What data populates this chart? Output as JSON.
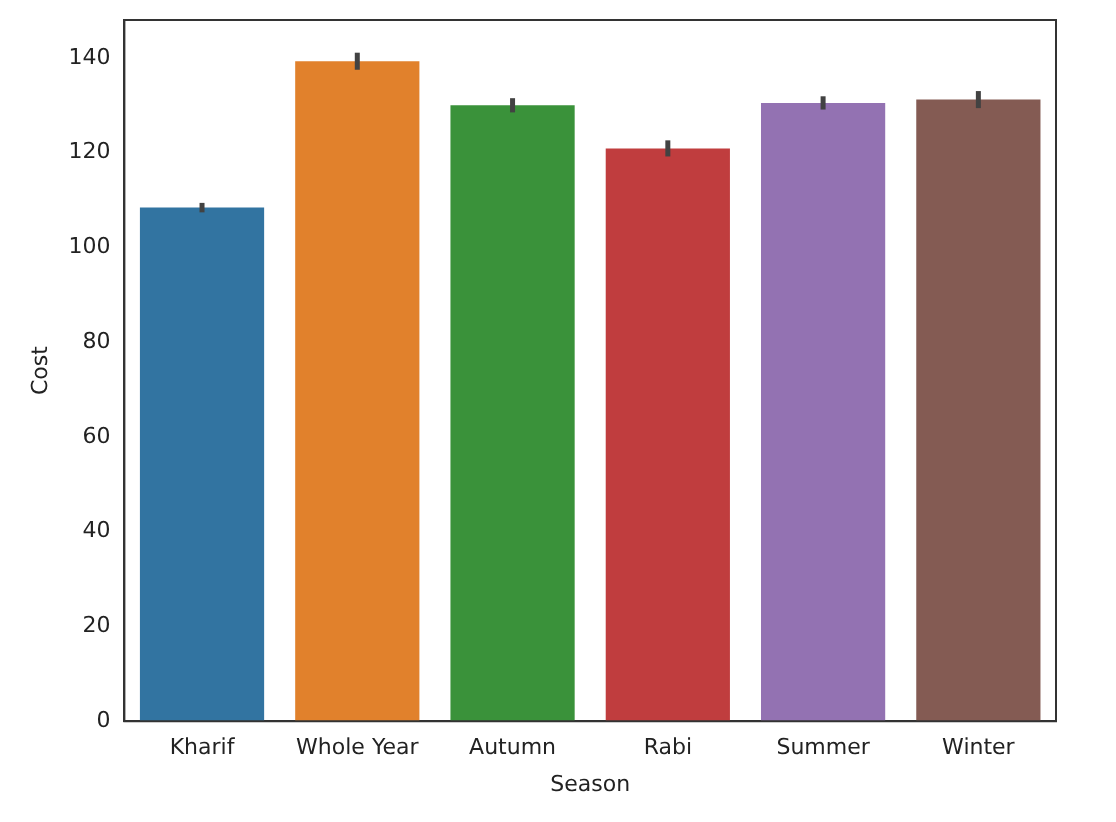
{
  "chart_data": {
    "type": "bar",
    "xlabel": "Season",
    "ylabel": "Cost",
    "categories": [
      "Kharif",
      "Whole Year",
      "Autumn",
      "Rabi",
      "Summer",
      "Winter"
    ],
    "values": [
      108.4,
      139.3,
      130.0,
      120.9,
      130.5,
      131.2
    ],
    "colors": [
      "#3274a1",
      "#e1812c",
      "#3a923a",
      "#c03d3e",
      "#9372b2",
      "#845b53"
    ],
    "errors": [
      1.0,
      1.8,
      1.5,
      1.7,
      1.4,
      1.8
    ],
    "ylim": [
      0,
      148
    ],
    "yticks": [
      0,
      20,
      40,
      60,
      80,
      100,
      120,
      140
    ],
    "grid": false,
    "legend": false
  }
}
